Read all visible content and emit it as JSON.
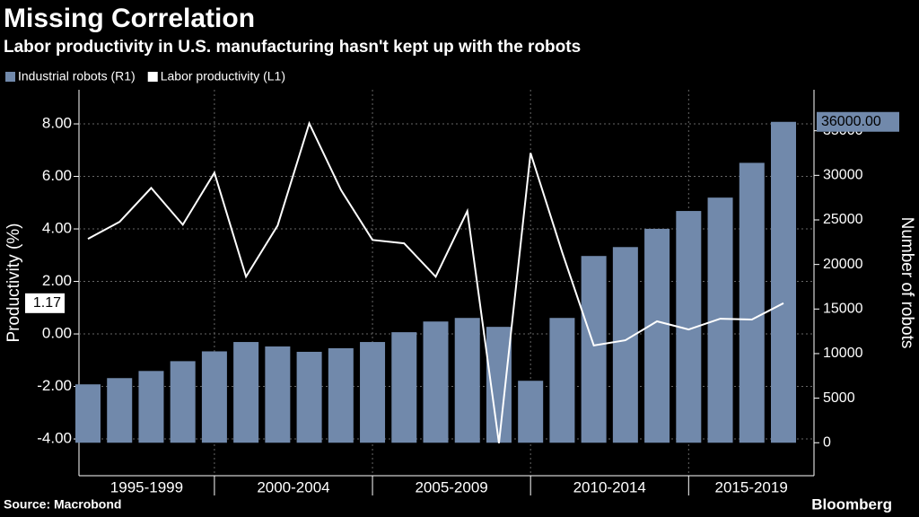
{
  "chart_data": {
    "type": "bar-line",
    "title": "Missing Correlation",
    "subtitle": "Labor productivity in U.S. manufacturing hasn't kept up with the robots",
    "y_label": "Productivity (%)",
    "y2_label": "Number of robots",
    "source": "Source: Macrobond",
    "brand": "Bloomberg",
    "categories": [
      null,
      null,
      null,
      null,
      null,
      null,
      null,
      null,
      null,
      null,
      null,
      null,
      null,
      null,
      null,
      null,
      null,
      null,
      null,
      null,
      null,
      null,
      null
    ],
    "group_labels": [
      "1995-1999",
      "2000-2004",
      "2005-2009",
      "2010-2014",
      "2015-2019"
    ],
    "series": [
      {
        "name": "Industrial robots (R1)",
        "kind": "bar",
        "axis": "y2",
        "color": "#7189ab",
        "values": [
          6550,
          7250,
          8050,
          9150,
          10250,
          11300,
          10800,
          10200,
          10600,
          11300,
          12400,
          13600,
          14000,
          13000,
          6950,
          14000,
          20950,
          21950,
          24000,
          26000,
          27500,
          31400,
          36000
        ],
        "value_labels": [
          null,
          null,
          null,
          null,
          null,
          null,
          null,
          null,
          null,
          null,
          null,
          null,
          null,
          null,
          null,
          null,
          null,
          null,
          null,
          null,
          null,
          null,
          "36000.00"
        ]
      },
      {
        "name": "Labor productivity (L1)",
        "kind": "line",
        "axis": "y",
        "color": "#ffffff",
        "values": [
          3.62,
          4.27,
          5.56,
          4.16,
          6.14,
          2.18,
          4.13,
          8.02,
          5.49,
          3.58,
          3.45,
          2.18,
          4.68,
          -4.16,
          6.89,
          3.11,
          -0.44,
          -0.24,
          0.48,
          0.17,
          0.58,
          0.55,
          1.17
        ],
        "value_labels": [
          null,
          null,
          null,
          null,
          null,
          null,
          null,
          null,
          null,
          null,
          null,
          null,
          null,
          null,
          null,
          null,
          null,
          null,
          null,
          null,
          null,
          null,
          "1.17"
        ]
      }
    ],
    "ylim": [
      -5.4,
      9.3
    ],
    "yticks": [
      {
        "value": -4,
        "label": "-4.00"
      },
      {
        "value": -2,
        "label": "-2.00"
      },
      {
        "value": 0,
        "label": "0.00"
      },
      {
        "value": 2,
        "label": "2.00"
      },
      {
        "value": 4,
        "label": "4.00"
      },
      {
        "value": 6,
        "label": "6.00"
      },
      {
        "value": 8,
        "label": "8.00"
      }
    ],
    "y2lim": [
      -3700,
      39600
    ],
    "y2ticks": [
      0,
      5000,
      10000,
      15000,
      20000,
      25000,
      30000,
      35000
    ],
    "grid": true
  }
}
